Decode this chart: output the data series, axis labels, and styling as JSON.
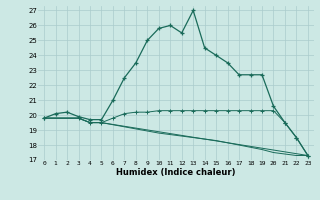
{
  "title": "",
  "xlabel": "Humidex (Indice chaleur)",
  "bg_color": "#cce8e4",
  "grid_color": "#aacccc",
  "line_color": "#1a6b5a",
  "xlim": [
    -0.5,
    23.5
  ],
  "ylim": [
    17,
    27.3
  ],
  "xticks": [
    0,
    1,
    2,
    3,
    4,
    5,
    6,
    7,
    8,
    9,
    10,
    11,
    12,
    13,
    14,
    15,
    16,
    17,
    18,
    19,
    20,
    21,
    22,
    23
  ],
  "yticks": [
    17,
    18,
    19,
    20,
    21,
    22,
    23,
    24,
    25,
    26,
    27
  ],
  "line1_x": [
    0,
    1,
    2,
    3,
    4,
    5,
    6,
    7,
    8,
    9,
    10,
    11,
    12,
    13,
    14,
    15,
    16,
    17,
    18,
    19,
    20,
    21,
    22,
    23
  ],
  "line1_y": [
    19.8,
    20.1,
    20.2,
    19.9,
    19.7,
    19.7,
    21.0,
    22.5,
    23.5,
    25.0,
    25.8,
    26.0,
    25.5,
    27.0,
    24.5,
    24.0,
    23.5,
    22.7,
    22.7,
    22.7,
    20.6,
    19.5,
    18.5,
    17.3
  ],
  "line2_x": [
    0,
    3,
    4,
    5,
    6,
    7,
    8,
    9,
    10,
    11,
    12,
    13,
    14,
    15,
    16,
    17,
    18,
    19,
    20,
    21,
    22,
    23
  ],
  "line2_y": [
    19.8,
    19.8,
    19.5,
    19.5,
    19.8,
    20.1,
    20.2,
    20.2,
    20.3,
    20.3,
    20.3,
    20.3,
    20.3,
    20.3,
    20.3,
    20.3,
    20.3,
    20.3,
    20.3,
    19.5,
    18.5,
    17.3
  ],
  "line3_x": [
    0,
    3,
    4,
    5,
    23
  ],
  "line3_y": [
    19.8,
    19.8,
    19.5,
    19.5,
    17.3
  ],
  "line4_x": [
    0,
    3,
    4,
    5,
    10,
    15,
    19,
    20,
    21,
    22,
    23
  ],
  "line4_y": [
    19.8,
    19.8,
    19.5,
    19.5,
    18.8,
    18.3,
    17.7,
    17.5,
    17.4,
    17.3,
    17.3
  ]
}
